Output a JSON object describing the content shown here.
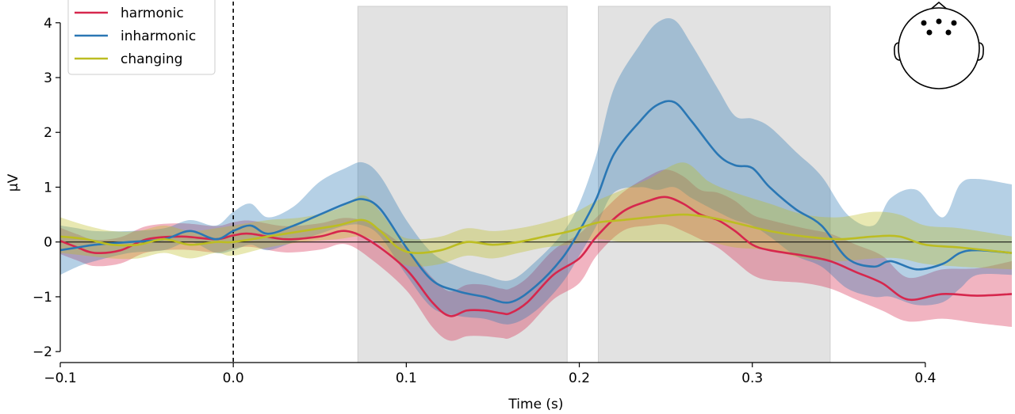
{
  "chart_data": {
    "type": "line",
    "xlabel": "Time (s)",
    "ylabel": "μV",
    "xlim": [
      -0.1,
      0.45
    ],
    "ylim": [
      -2.2,
      4.3
    ],
    "xticks": [
      -0.1,
      0.0,
      0.1,
      0.2,
      0.3,
      0.4
    ],
    "xtick_labels": [
      "−0.1",
      "0.0",
      "0.1",
      "0.2",
      "0.3",
      "0.4"
    ],
    "yticks": [
      -2,
      -1,
      0,
      1,
      2,
      3,
      4
    ],
    "ytick_labels": [
      "−2",
      "−1",
      "0",
      "1",
      "2",
      "3",
      "4"
    ],
    "legend_position": "top-left",
    "grid": false,
    "event_line_x": 0.0,
    "zero_line_y": 0,
    "highlight_windows": [
      [
        0.072,
        0.193
      ],
      [
        0.211,
        0.345
      ]
    ],
    "head_sensors": "frontal",
    "series": [
      {
        "name": "harmonic",
        "color": "#d6274d",
        "x": [
          -0.1,
          -0.09,
          -0.08,
          -0.065,
          -0.05,
          -0.03,
          -0.01,
          0.0,
          0.01,
          0.03,
          0.05,
          0.065,
          0.08,
          0.1,
          0.115,
          0.125,
          0.135,
          0.145,
          0.155,
          0.16,
          0.17,
          0.185,
          0.2,
          0.21,
          0.225,
          0.24,
          0.25,
          0.26,
          0.27,
          0.28,
          0.29,
          0.3,
          0.31,
          0.33,
          0.345,
          0.36,
          0.375,
          0.39,
          0.41,
          0.43,
          0.45
        ],
        "y": [
          0.02,
          -0.1,
          -0.2,
          -0.15,
          0.05,
          0.1,
          0.05,
          0.12,
          0.15,
          0.05,
          0.1,
          0.2,
          0.0,
          -0.5,
          -1.1,
          -1.35,
          -1.25,
          -1.25,
          -1.3,
          -1.3,
          -1.1,
          -0.6,
          -0.3,
          0.1,
          0.55,
          0.75,
          0.82,
          0.7,
          0.5,
          0.4,
          0.2,
          -0.05,
          -0.15,
          -0.25,
          -0.35,
          -0.55,
          -0.75,
          -1.05,
          -0.95,
          -0.98,
          -0.95
        ],
        "lower": [
          -0.22,
          -0.34,
          -0.44,
          -0.39,
          -0.19,
          -0.14,
          -0.19,
          -0.12,
          -0.09,
          -0.19,
          -0.14,
          -0.04,
          -0.32,
          -0.88,
          -1.55,
          -1.8,
          -1.72,
          -1.72,
          -1.75,
          -1.75,
          -1.55,
          -1.05,
          -0.75,
          -0.25,
          0.2,
          0.3,
          0.32,
          0.2,
          0.05,
          -0.1,
          -0.35,
          -0.6,
          -0.7,
          -0.75,
          -0.85,
          -1.05,
          -1.25,
          -1.45,
          -1.4,
          -1.48,
          -1.55
        ],
        "upper": [
          0.26,
          0.14,
          0.04,
          0.09,
          0.29,
          0.34,
          0.29,
          0.36,
          0.39,
          0.29,
          0.34,
          0.44,
          0.32,
          -0.12,
          -0.65,
          -0.9,
          -0.78,
          -0.78,
          -0.85,
          -0.85,
          -0.65,
          -0.15,
          0.15,
          0.45,
          0.9,
          1.2,
          1.32,
          1.2,
          0.95,
          0.9,
          0.75,
          0.5,
          0.4,
          0.25,
          0.15,
          -0.05,
          -0.25,
          -0.65,
          -0.5,
          -0.48,
          -0.35
        ]
      },
      {
        "name": "inharmonic",
        "color": "#2a77b4",
        "x": [
          -0.1,
          -0.09,
          -0.08,
          -0.06,
          -0.04,
          -0.025,
          -0.01,
          0.0,
          0.01,
          0.02,
          0.035,
          0.05,
          0.065,
          0.075,
          0.085,
          0.1,
          0.115,
          0.13,
          0.145,
          0.16,
          0.175,
          0.19,
          0.2,
          0.21,
          0.22,
          0.235,
          0.245,
          0.255,
          0.265,
          0.28,
          0.29,
          0.3,
          0.31,
          0.325,
          0.34,
          0.355,
          0.37,
          0.38,
          0.395,
          0.41,
          0.42,
          0.43,
          0.45
        ],
        "y": [
          -0.15,
          -0.1,
          -0.05,
          0.0,
          0.05,
          0.2,
          0.05,
          0.2,
          0.3,
          0.15,
          0.3,
          0.5,
          0.7,
          0.78,
          0.6,
          -0.1,
          -0.7,
          -0.9,
          -1.0,
          -1.1,
          -0.8,
          -0.3,
          0.2,
          0.8,
          1.6,
          2.2,
          2.5,
          2.55,
          2.2,
          1.6,
          1.4,
          1.35,
          1.0,
          0.6,
          0.3,
          -0.3,
          -0.45,
          -0.35,
          -0.5,
          -0.4,
          -0.2,
          -0.15,
          -0.2
        ],
        "lower": [
          -0.6,
          -0.45,
          -0.35,
          -0.2,
          -0.15,
          0.0,
          -0.2,
          -0.15,
          -0.05,
          -0.15,
          0.0,
          0.15,
          0.3,
          0.3,
          0.1,
          -0.6,
          -1.2,
          -1.35,
          -1.4,
          -1.5,
          -1.25,
          -0.75,
          -0.25,
          0.3,
          0.9,
          1.0,
          0.95,
          1.0,
          0.8,
          0.55,
          0.4,
          0.3,
          0.1,
          -0.25,
          -0.45,
          -0.85,
          -1.0,
          -1.0,
          -1.15,
          -1.1,
          -0.85,
          -0.6,
          -0.6
        ],
        "upper": [
          0.3,
          0.25,
          0.2,
          0.2,
          0.25,
          0.4,
          0.3,
          0.55,
          0.7,
          0.45,
          0.65,
          1.1,
          1.35,
          1.45,
          1.2,
          0.4,
          -0.2,
          -0.45,
          -0.6,
          -0.7,
          -0.35,
          0.15,
          0.7,
          1.6,
          2.8,
          3.6,
          4.0,
          4.05,
          3.6,
          2.8,
          2.3,
          2.25,
          2.1,
          1.65,
          1.2,
          0.5,
          0.3,
          0.8,
          0.95,
          0.45,
          1.05,
          1.15,
          1.05
        ]
      },
      {
        "name": "changing",
        "color": "#bcbd22",
        "x": [
          -0.1,
          -0.085,
          -0.07,
          -0.055,
          -0.04,
          -0.025,
          -0.01,
          0.0,
          0.02,
          0.04,
          0.06,
          0.075,
          0.085,
          0.095,
          0.105,
          0.12,
          0.135,
          0.15,
          0.165,
          0.18,
          0.195,
          0.21,
          0.225,
          0.24,
          0.26,
          0.275,
          0.29,
          0.31,
          0.33,
          0.35,
          0.37,
          0.385,
          0.4,
          0.42,
          0.45
        ],
        "y": [
          0.1,
          0.05,
          -0.05,
          -0.05,
          0.05,
          -0.05,
          0.0,
          0.0,
          0.1,
          0.2,
          0.3,
          0.4,
          0.2,
          -0.1,
          -0.2,
          -0.15,
          0.0,
          -0.05,
          0.0,
          0.1,
          0.2,
          0.35,
          0.4,
          0.45,
          0.5,
          0.45,
          0.35,
          0.2,
          0.1,
          0.05,
          0.1,
          0.1,
          -0.05,
          -0.1,
          -0.2
        ],
        "lower": [
          -0.2,
          -0.25,
          -0.3,
          -0.3,
          -0.2,
          -0.3,
          -0.2,
          -0.25,
          -0.1,
          0.0,
          0.05,
          0.1,
          -0.05,
          -0.35,
          -0.45,
          -0.4,
          -0.25,
          -0.3,
          -0.2,
          -0.1,
          -0.05,
          0.05,
          0.0,
          0.0,
          0.0,
          0.0,
          -0.1,
          -0.15,
          -0.3,
          -0.35,
          -0.3,
          -0.3,
          -0.4,
          -0.45,
          -0.5
        ],
        "upper": [
          0.45,
          0.3,
          0.2,
          0.2,
          0.3,
          0.2,
          0.25,
          0.3,
          0.4,
          0.45,
          0.6,
          0.85,
          0.55,
          0.15,
          0.05,
          0.1,
          0.25,
          0.2,
          0.25,
          0.35,
          0.5,
          0.75,
          0.95,
          1.15,
          1.45,
          1.1,
          0.9,
          0.7,
          0.5,
          0.45,
          0.55,
          0.5,
          0.3,
          0.25,
          0.1
        ]
      }
    ]
  }
}
